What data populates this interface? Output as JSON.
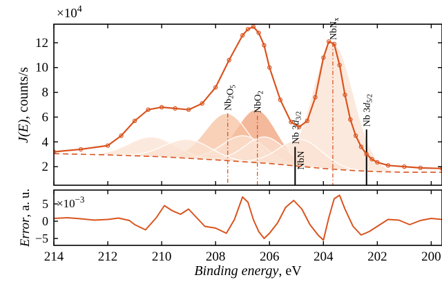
{
  "chart_data": [
    {
      "type": "line",
      "panel": "spectrum",
      "xlabel_main": "Binding energy",
      "xlabel_unit": ", eV",
      "ylabel_main": "J(E)",
      "ylabel_unit": ", counts/s",
      "multiplier_base": "×10",
      "multiplier_exp": "4",
      "xlim": [
        214,
        199.6
      ],
      "ylim": [
        0.5,
        13.5
      ],
      "x_reversed": true,
      "xticks": [
        214,
        212,
        210,
        208,
        206,
        204,
        202,
        200
      ],
      "yticks": [
        2,
        4,
        6,
        8,
        10,
        12
      ],
      "grid": false,
      "colors": {
        "line": "#d9531e",
        "fill_light": "#fbe2d2",
        "fill_mid": "#f6c1a0",
        "fill_dark": "#f0a07a"
      },
      "series": [
        {
          "name": "",
          "style": "solid",
          "x": [
            214,
            213,
            212,
            211.5,
            211,
            210.5,
            210,
            209.5,
            209,
            208.5,
            208,
            207.5,
            207,
            206.8,
            206.6,
            206.4,
            206.2,
            206,
            205.6,
            205.2,
            204.9,
            204.6,
            204.3,
            204,
            203.8,
            203.6,
            203.4,
            203.2,
            203,
            202.8,
            202.6,
            202.4,
            202.2,
            202,
            201.6,
            201,
            200.4,
            199.6
          ],
          "y": [
            3.2,
            3.4,
            3.7,
            4.5,
            5.7,
            6.6,
            6.8,
            6.7,
            6.6,
            7.1,
            8.4,
            10.6,
            12.6,
            13.1,
            13.3,
            12.8,
            11.8,
            10.0,
            7.4,
            5.6,
            5.2,
            5.7,
            7.6,
            10.8,
            12.1,
            11.9,
            10.2,
            7.8,
            5.8,
            4.5,
            3.6,
            3.0,
            2.6,
            2.35,
            2.1,
            2.0,
            1.9,
            1.85
          ]
        },
        {
          "name": "",
          "style": "dashed",
          "x": [
            214,
            212,
            210,
            208,
            206,
            205,
            204,
            203,
            202.5,
            202,
            201,
            200,
            199.6
          ],
          "y": [
            3.05,
            2.95,
            2.8,
            2.55,
            2.25,
            2.05,
            1.85,
            1.7,
            1.65,
            1.6,
            1.55,
            1.55,
            1.55
          ]
        }
      ],
      "components": [
        {
          "center": 210.4,
          "height": 4.4,
          "width": 0.85,
          "shade": "light"
        },
        {
          "center": 209.1,
          "height": 4.2,
          "width": 0.85,
          "shade": "light"
        },
        {
          "center": 207.6,
          "height": 6.3,
          "width": 0.8,
          "shade": "mid"
        },
        {
          "center": 207.0,
          "height": 4.5,
          "width": 0.8,
          "shade": "light"
        },
        {
          "center": 206.5,
          "height": 6.6,
          "width": 0.75,
          "shade": "dark"
        },
        {
          "center": 206.2,
          "height": 4.4,
          "width": 0.75,
          "shade": "light"
        },
        {
          "center": 204.9,
          "height": 4.2,
          "width": 0.8,
          "shade": "light"
        },
        {
          "center": 203.65,
          "height": 12.0,
          "width": 0.75,
          "shade": "light"
        }
      ],
      "markers": [
        {
          "label_parts": [
            [
              "Nb",
              ""
            ],
            [
              "2",
              "sub"
            ],
            [
              "O",
              ""
            ],
            [
              "5",
              "sub"
            ]
          ],
          "x": 207.55,
          "y_top": 6.3,
          "style": "dashdot"
        },
        {
          "label_parts": [
            [
              "NbO",
              ""
            ],
            [
              "2",
              "sub"
            ]
          ],
          "x": 206.45,
          "y_top": 6.1,
          "style": "dashdot"
        },
        {
          "label_parts": [
            [
              "Nb 3",
              ""
            ],
            [
              "d",
              "italic"
            ],
            [
              "3/2",
              "sub"
            ]
          ],
          "x": 205.05,
          "y_top": 3.6,
          "style": "solid"
        },
        {
          "label_parts": [
            [
              "NbN",
              ""
            ]
          ],
          "x": 204.85,
          "y_top": 3.6,
          "style": "none"
        },
        {
          "label_parts": [
            [
              "NbN",
              ""
            ],
            [
              "x",
              "sub"
            ]
          ],
          "x": 203.65,
          "y_top": 12.0,
          "style": "dashdot"
        },
        {
          "label_parts": [
            [
              "Nb 3",
              ""
            ],
            [
              "d",
              "italic"
            ],
            [
              "5/2",
              "sub"
            ]
          ],
          "x": 202.4,
          "y_top": 5.0,
          "style": "solid"
        }
      ]
    },
    {
      "type": "line",
      "panel": "residual",
      "ylabel_main": "Error",
      "ylabel_unit": ", a. u.",
      "multiplier_base": "×10",
      "multiplier_exp": "−3",
      "ylim": [
        -7,
        9
      ],
      "yticks": [
        5,
        0,
        -5
      ],
      "ytick_labels": [
        "5",
        "0",
        "−5"
      ],
      "series": [
        {
          "name": "",
          "x": [
            214,
            213.5,
            213,
            212.5,
            212,
            211.6,
            211.2,
            211,
            210.6,
            210.2,
            209.9,
            209.6,
            209.3,
            209,
            208.7,
            208.4,
            208,
            207.6,
            207.3,
            207,
            206.8,
            206.6,
            206.4,
            206.2,
            206,
            205.7,
            205.4,
            205.1,
            204.8,
            204.5,
            204.2,
            204,
            203.8,
            203.6,
            203.4,
            203.2,
            202.9,
            202.6,
            202.3,
            202,
            201.6,
            201.2,
            200.8,
            200.4,
            200,
            199.6
          ],
          "y": [
            0.8,
            1.0,
            0.7,
            0.3,
            0.5,
            0.9,
            0.2,
            -1.0,
            -2.5,
            1.0,
            4.5,
            3.0,
            2.0,
            3.5,
            1.0,
            -1.5,
            -2.0,
            -3.5,
            0.5,
            7.0,
            5.5,
            0.5,
            -3.0,
            -5.0,
            -3.5,
            -0.5,
            4.0,
            6.0,
            3.5,
            -1.0,
            -4.0,
            -5.5,
            1.0,
            6.5,
            7.5,
            3.5,
            -1.5,
            -4.0,
            -3.0,
            -1.5,
            0.5,
            0.3,
            -1.0,
            0.2,
            0.8,
            0.5
          ]
        }
      ]
    }
  ]
}
